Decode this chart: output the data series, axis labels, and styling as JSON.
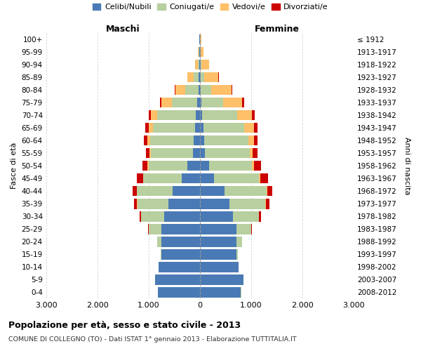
{
  "age_groups": [
    "0-4",
    "5-9",
    "10-14",
    "15-19",
    "20-24",
    "25-29",
    "30-34",
    "35-39",
    "40-44",
    "45-49",
    "50-54",
    "55-59",
    "60-64",
    "65-69",
    "70-74",
    "75-79",
    "80-84",
    "85-89",
    "90-94",
    "95-99",
    "100+"
  ],
  "birth_years": [
    "2008-2012",
    "2003-2007",
    "1998-2002",
    "1993-1997",
    "1988-1992",
    "1983-1987",
    "1978-1982",
    "1973-1977",
    "1968-1972",
    "1963-1967",
    "1958-1962",
    "1953-1957",
    "1948-1952",
    "1943-1947",
    "1938-1942",
    "1933-1937",
    "1928-1932",
    "1923-1927",
    "1918-1922",
    "1913-1917",
    "≤ 1912"
  ],
  "colors": {
    "celibi": "#4a7ab5",
    "coniugati": "#b8cfa0",
    "vedovi": "#ffc069",
    "divorziati": "#cc0000"
  },
  "males": {
    "celibi": [
      820,
      870,
      800,
      750,
      750,
      750,
      700,
      620,
      530,
      350,
      250,
      130,
      120,
      100,
      80,
      50,
      30,
      20,
      15,
      10,
      5
    ],
    "coniugati": [
      5,
      5,
      5,
      20,
      80,
      250,
      450,
      600,
      700,
      750,
      750,
      820,
      850,
      820,
      750,
      500,
      250,
      100,
      30,
      10,
      0
    ],
    "vedovi": [
      0,
      0,
      0,
      0,
      0,
      0,
      0,
      5,
      5,
      10,
      20,
      30,
      50,
      80,
      120,
      200,
      200,
      120,
      50,
      20,
      5
    ],
    "divorziati": [
      0,
      0,
      0,
      0,
      5,
      10,
      30,
      60,
      80,
      120,
      100,
      70,
      70,
      60,
      50,
      30,
      10,
      5,
      0,
      0,
      0
    ]
  },
  "females": {
    "celibi": [
      800,
      850,
      750,
      720,
      720,
      720,
      650,
      580,
      480,
      280,
      180,
      100,
      80,
      70,
      50,
      30,
      20,
      15,
      10,
      10,
      5
    ],
    "coniugati": [
      5,
      5,
      5,
      25,
      100,
      280,
      500,
      700,
      820,
      870,
      830,
      870,
      870,
      800,
      680,
      420,
      200,
      70,
      20,
      5,
      0
    ],
    "vedovi": [
      0,
      0,
      0,
      0,
      0,
      0,
      5,
      10,
      15,
      30,
      50,
      60,
      100,
      180,
      280,
      380,
      400,
      280,
      150,
      60,
      20
    ],
    "divorziati": [
      0,
      0,
      0,
      0,
      5,
      15,
      40,
      70,
      100,
      150,
      130,
      90,
      80,
      70,
      60,
      30,
      10,
      5,
      0,
      0,
      0
    ]
  },
  "title": "Popolazione per età, sesso e stato civile - 2013",
  "subtitle": "COMUNE DI COLLEGNO (TO) - Dati ISTAT 1° gennaio 2013 - Elaborazione TUTTITALIA.IT",
  "xlabel_left": "Maschi",
  "xlabel_right": "Femmine",
  "ylabel_left": "Fasce di età",
  "ylabel_right": "Anni di nascita",
  "xlim": 3000,
  "legend_labels": [
    "Celibi/Nubili",
    "Coniugati/e",
    "Vedovi/e",
    "Divorziati/e"
  ],
  "background_color": "#ffffff",
  "grid_color": "#cccccc"
}
